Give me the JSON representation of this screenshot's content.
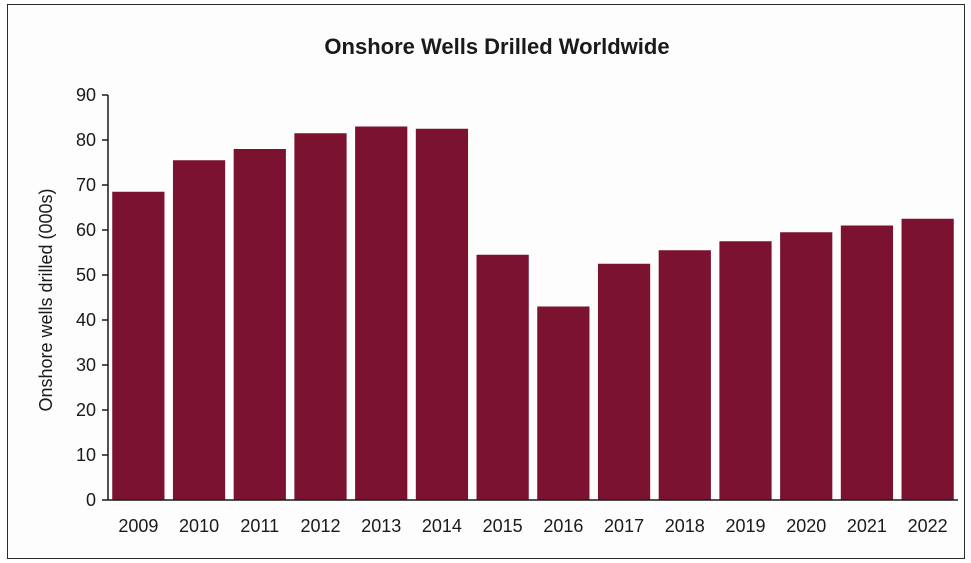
{
  "chart_data": {
    "type": "bar",
    "title": "Onshore Wells Drilled Worldwide",
    "xlabel": "",
    "ylabel": "Onshore wells drilled (000s)",
    "categories": [
      "2009",
      "2010",
      "2011",
      "2012",
      "2013",
      "2014",
      "2015",
      "2016",
      "2017",
      "2018",
      "2019",
      "2020",
      "2021",
      "2022"
    ],
    "values": [
      68.5,
      75.5,
      78,
      81.5,
      83,
      82.5,
      54.5,
      43,
      52.5,
      55.5,
      57.5,
      59.5,
      61,
      62.5
    ],
    "ylim": [
      0,
      90
    ],
    "yticks": [
      "0",
      "10",
      "20",
      "30",
      "40",
      "50",
      "60",
      "70",
      "80",
      "90"
    ],
    "grid": false,
    "legend": "none",
    "bar_color": "#7a1230"
  }
}
